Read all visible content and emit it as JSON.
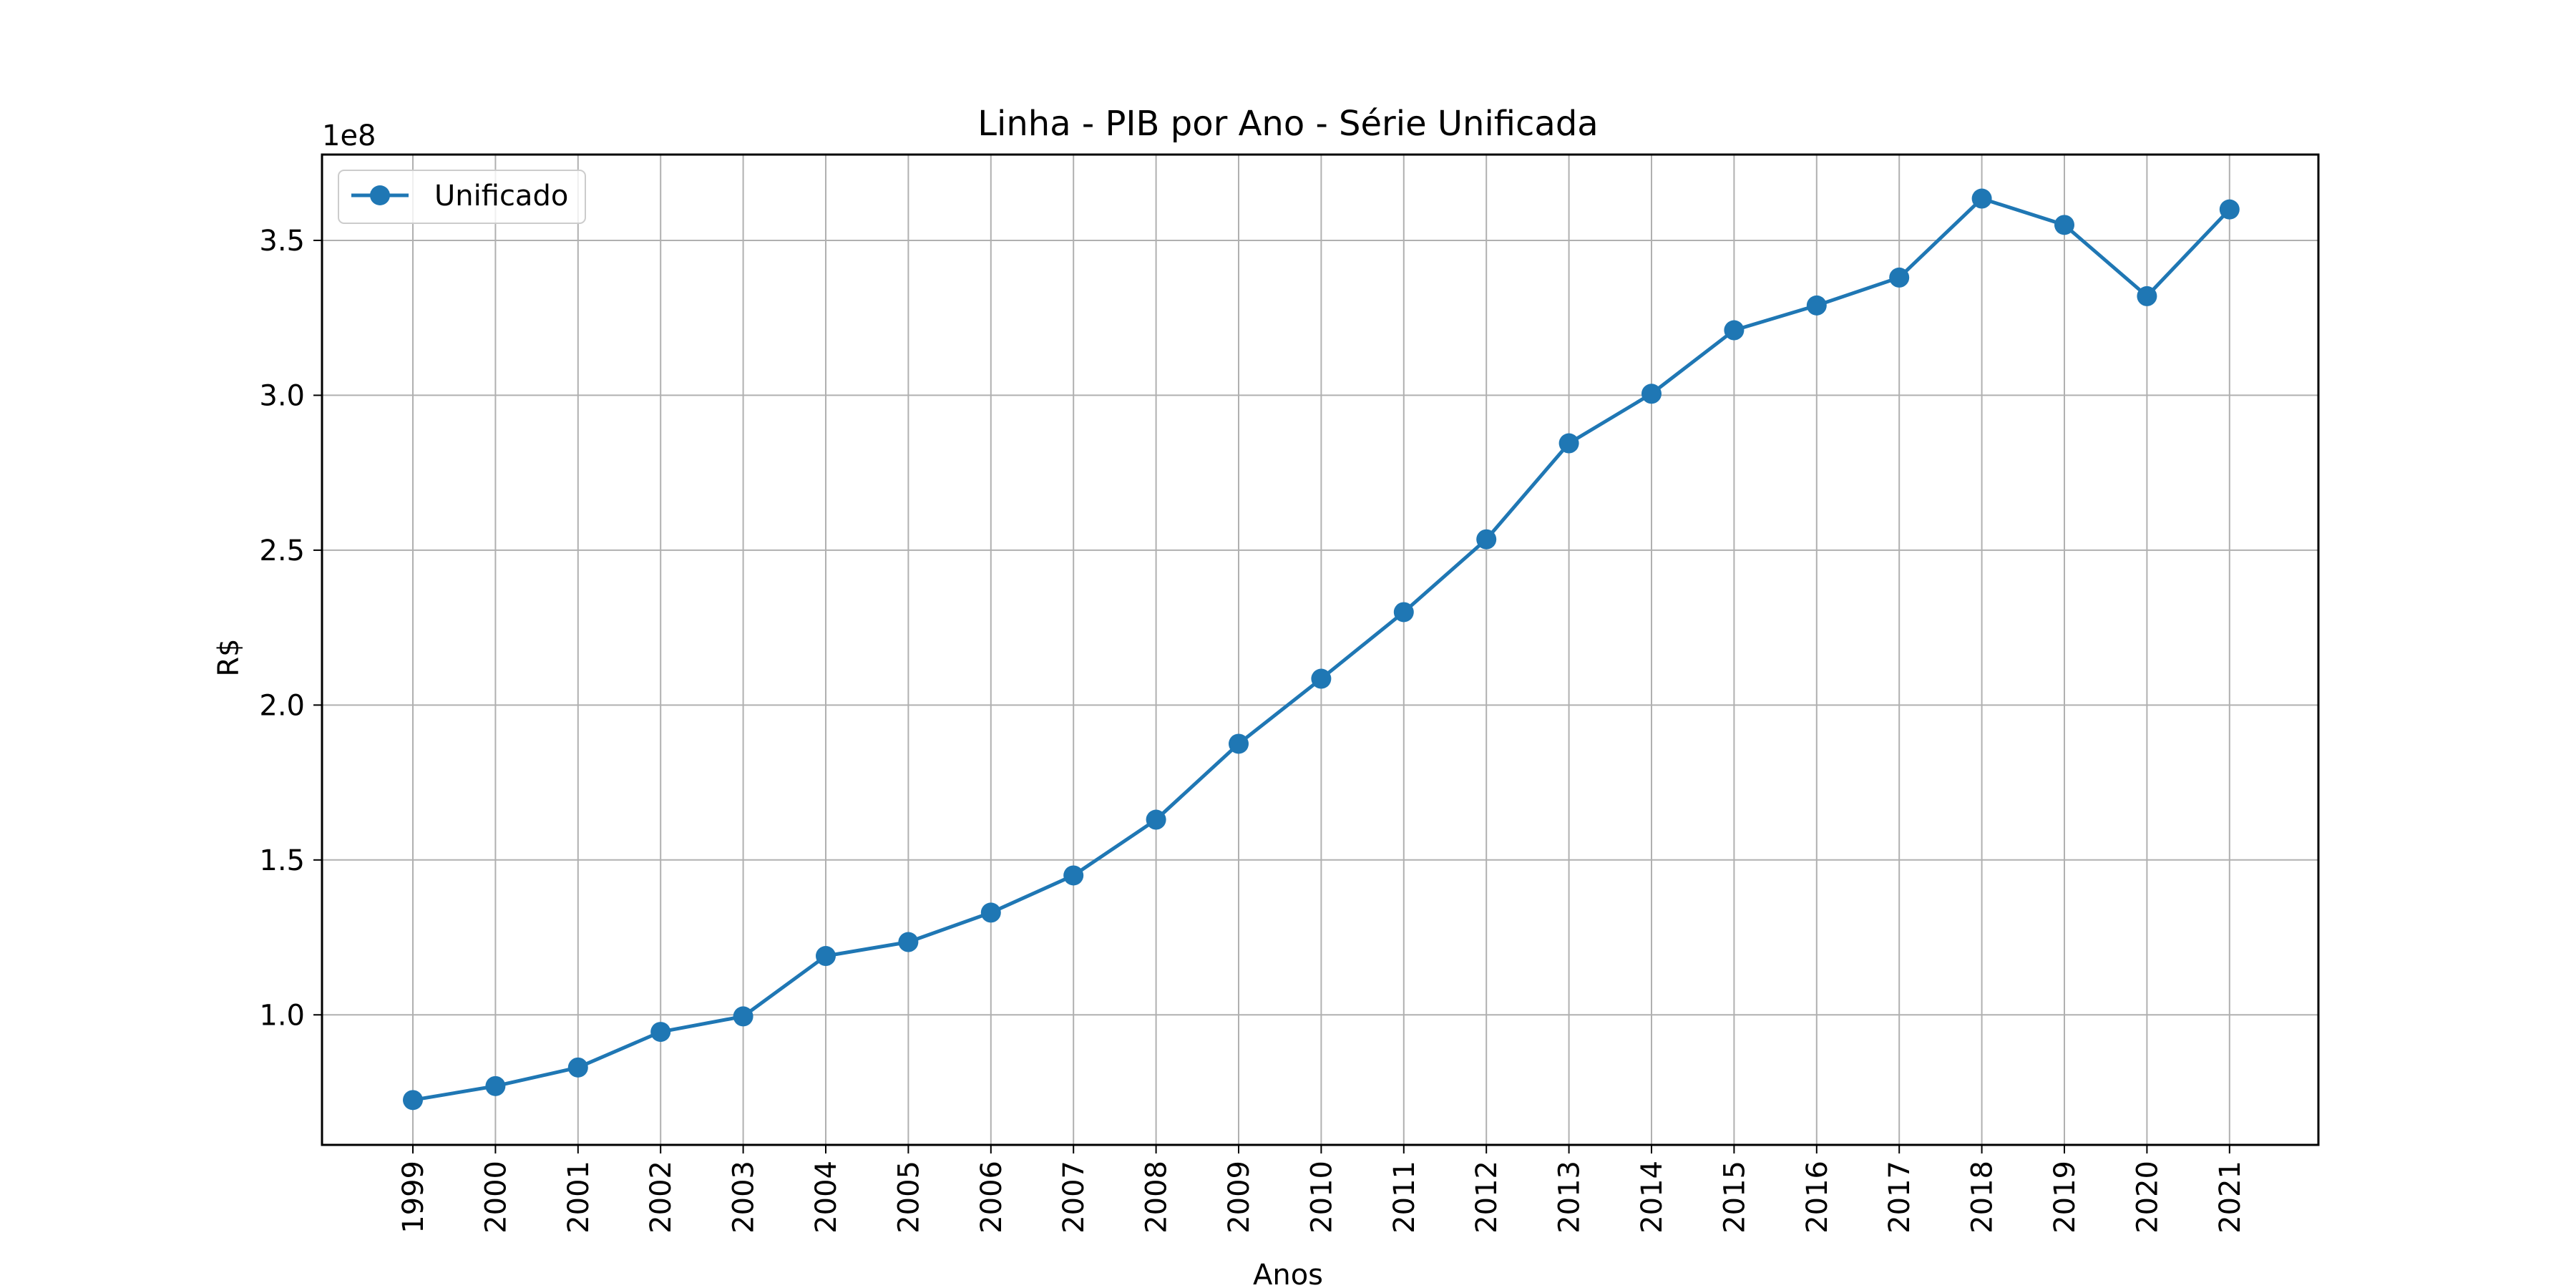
{
  "chart_data": {
    "type": "line",
    "title": "Linha - PIB por Ano - Série Unificada",
    "xlabel": "Anos",
    "ylabel": "R$",
    "offset_text": "1e8",
    "scale": 100000000,
    "grid": true,
    "legend_position": "upper-left",
    "ylim": [
      0.5802,
      3.7771
    ],
    "yticks": [
      1.0,
      1.5,
      2.0,
      2.5,
      3.0,
      3.5
    ],
    "ytick_labels": [
      "1.0",
      "1.5",
      "2.0",
      "2.5",
      "3.0",
      "3.5"
    ],
    "x": [
      "1999",
      "2000",
      "2001",
      "2002",
      "2003",
      "2004",
      "2005",
      "2006",
      "2007",
      "2008",
      "2009",
      "2010",
      "2011",
      "2012",
      "2013",
      "2014",
      "2015",
      "2016",
      "2017",
      "2018",
      "2019",
      "2020",
      "2021"
    ],
    "series": [
      {
        "name": "Unificado",
        "color": "#1f77b4",
        "values": [
          0.725,
          0.77,
          0.83,
          0.945,
          0.995,
          1.19,
          1.235,
          1.33,
          1.45,
          1.63,
          1.875,
          2.085,
          2.3,
          2.535,
          2.845,
          3.005,
          3.21,
          3.29,
          3.38,
          3.635,
          3.55,
          3.32,
          3.6
        ]
      }
    ]
  }
}
